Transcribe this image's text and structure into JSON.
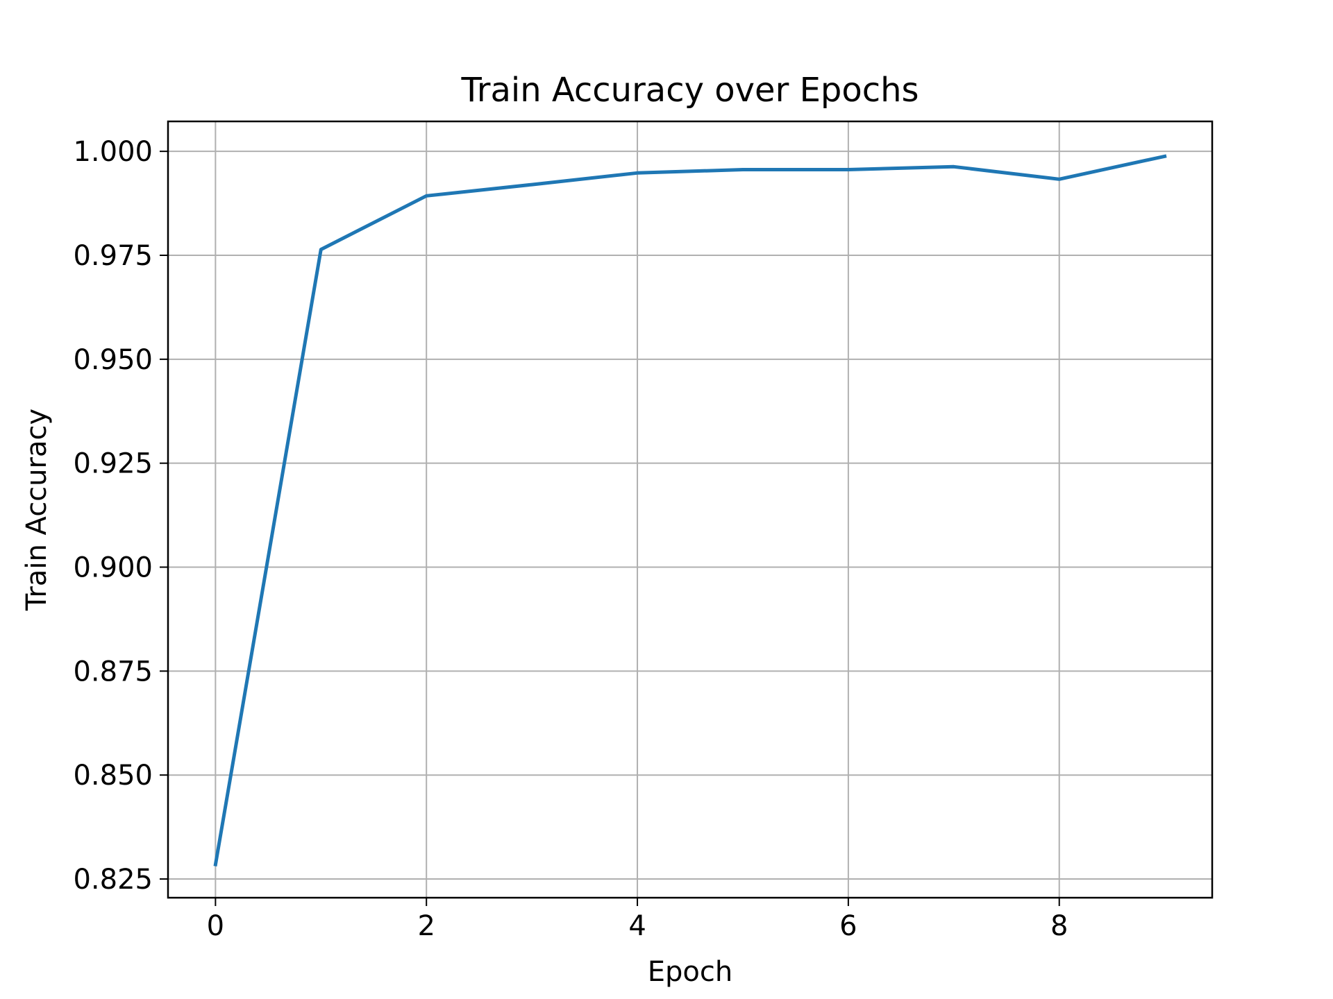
{
  "chart_data": {
    "type": "line",
    "title": "Train Accuracy over Epochs",
    "xlabel": "Epoch",
    "ylabel": "Train Accuracy",
    "xlim": [
      -0.45,
      9.45
    ],
    "ylim": [
      0.8205,
      1.0072
    ],
    "xticks": [
      0,
      2,
      4,
      6,
      8
    ],
    "xtick_labels": [
      "0",
      "2",
      "4",
      "6",
      "8"
    ],
    "yticks": [
      0.825,
      0.85,
      0.875,
      0.9,
      0.925,
      0.95,
      0.975,
      1.0
    ],
    "ytick_labels": [
      "0.825",
      "0.850",
      "0.875",
      "0.900",
      "0.925",
      "0.950",
      "0.975",
      "1.000"
    ],
    "grid": true,
    "series": [
      {
        "color": "#1f77b4",
        "x": [
          0,
          1,
          2,
          3,
          4,
          5,
          6,
          7,
          8,
          9
        ],
        "values": [
          0.8285,
          0.9764,
          0.9893,
          0.992,
          0.9948,
          0.9956,
          0.9956,
          0.9963,
          0.9933,
          0.9988
        ]
      }
    ]
  }
}
